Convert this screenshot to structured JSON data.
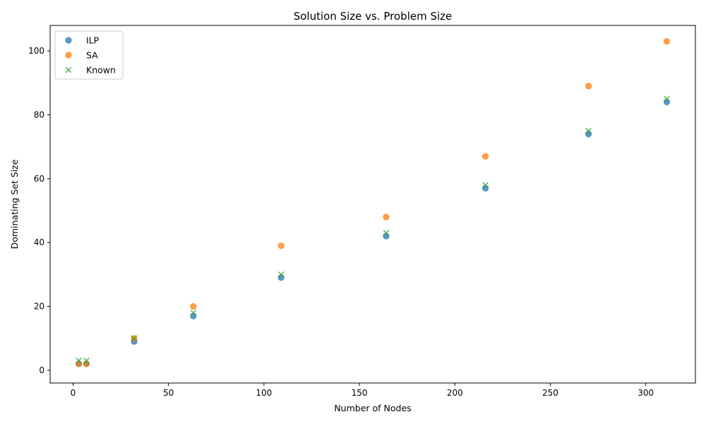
{
  "chart_data": {
    "type": "scatter",
    "title": "Solution Size vs. Problem Size",
    "xlabel": "Number of Nodes",
    "ylabel": "Dominating Set Size",
    "xlim": [
      -12,
      326
    ],
    "ylim": [
      -4,
      108
    ],
    "xticks": [
      0,
      50,
      100,
      150,
      200,
      250,
      300
    ],
    "yticks": [
      0,
      20,
      40,
      60,
      80,
      100
    ],
    "grid": false,
    "legend_position": "top-left",
    "series": [
      {
        "name": "ILP",
        "marker": "circle",
        "color": "#1f77b4",
        "x": [
          3,
          7,
          32,
          63,
          109,
          164,
          216,
          270,
          311
        ],
        "y": [
          2,
          2,
          9,
          17,
          29,
          42,
          57,
          74,
          84
        ]
      },
      {
        "name": "SA",
        "marker": "circle",
        "color": "#ff7f0e",
        "x": [
          3,
          7,
          32,
          63,
          109,
          164,
          216,
          270,
          311
        ],
        "y": [
          2,
          2,
          10,
          20,
          39,
          48,
          67,
          89,
          103
        ]
      },
      {
        "name": "Known",
        "marker": "x",
        "color": "#2ca02c",
        "x": [
          3,
          7,
          32,
          63,
          109,
          164,
          216,
          270,
          311
        ],
        "y": [
          3,
          3,
          10,
          18,
          30,
          43,
          58,
          75,
          85
        ]
      }
    ]
  }
}
